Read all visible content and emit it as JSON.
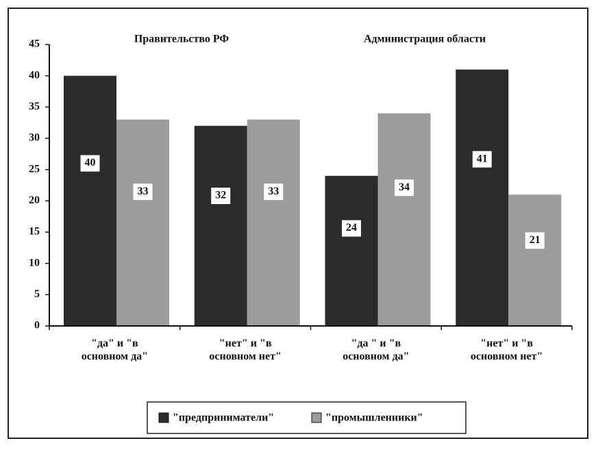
{
  "chart_data": {
    "type": "bar",
    "annotations": [
      "Правительство РФ",
      "Администрация области"
    ],
    "categories": [
      "\"да\" и \"в основном да\"",
      "\"нет\" и \"в основном нет\"",
      "\"да \" и \"в основном да\"",
      "\"нет\" и \"в основном нет\""
    ],
    "series": [
      {
        "name": "\"предприниматели\"",
        "color": "#2b2b2b",
        "values": [
          40,
          32,
          24,
          41
        ]
      },
      {
        "name": "\"промышленники\"",
        "color": "#9c9c9c",
        "values": [
          33,
          33,
          34,
          21
        ]
      }
    ],
    "ylim": [
      0,
      45
    ],
    "yticks": [
      0,
      5,
      10,
      15,
      20,
      25,
      30,
      35,
      40,
      45
    ]
  }
}
